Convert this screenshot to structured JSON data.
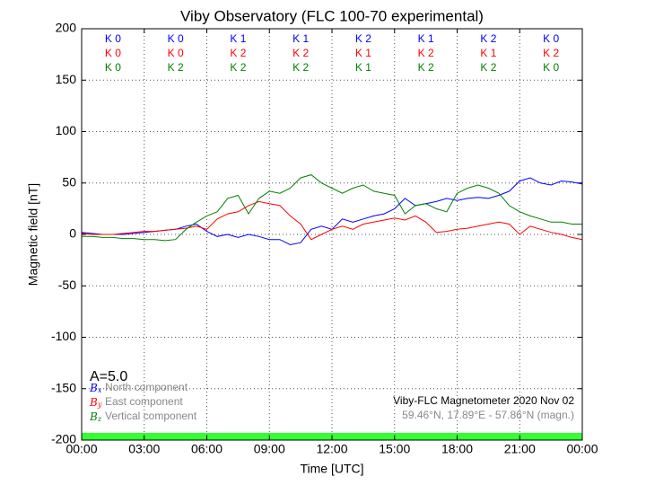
{
  "chart_data": {
    "type": "line",
    "title": "Viby Observatory (FLC 100-70 experimental)",
    "xlabel": "Time [UTC]",
    "ylabel": "Magnetic field [nT]",
    "x": [
      0,
      0.5,
      1,
      1.5,
      2,
      2.5,
      3,
      3.5,
      4,
      4.5,
      5,
      5.5,
      6,
      6.5,
      7,
      7.5,
      8,
      8.5,
      9,
      9.5,
      10,
      10.5,
      11,
      11.5,
      12,
      12.5,
      13,
      13.5,
      14,
      14.5,
      15,
      15.5,
      16,
      16.5,
      17,
      17.5,
      18,
      18.5,
      19,
      19.5,
      20,
      20.5,
      21,
      21.5,
      22,
      22.5,
      23,
      23.5,
      24
    ],
    "xlim": [
      0,
      24
    ],
    "xticks": [
      {
        "value": 0,
        "label": "00:00"
      },
      {
        "value": 3,
        "label": "03:00"
      },
      {
        "value": 6,
        "label": "06:00"
      },
      {
        "value": 9,
        "label": "09:00"
      },
      {
        "value": 12,
        "label": "12:00"
      },
      {
        "value": 15,
        "label": "15:00"
      },
      {
        "value": 18,
        "label": "18:00"
      },
      {
        "value": 21,
        "label": "21:00"
      },
      {
        "value": 24,
        "label": "00:00"
      }
    ],
    "ylim": [
      -200,
      200
    ],
    "yticks": [
      -200,
      -150,
      -100,
      -50,
      0,
      50,
      100,
      150,
      200
    ],
    "grid": true,
    "series": [
      {
        "name": "North component",
        "symbol": "B",
        "subscript": "x",
        "color": "#0000ff",
        "values": [
          2,
          1,
          0,
          0,
          0,
          1,
          2,
          3,
          4,
          5,
          8,
          10,
          3,
          -2,
          0,
          -3,
          0,
          -2,
          -5,
          -5,
          -10,
          -8,
          5,
          8,
          5,
          15,
          12,
          15,
          18,
          20,
          25,
          35,
          28,
          30,
          32,
          35,
          33,
          35,
          36,
          35,
          38,
          42,
          52,
          55,
          50,
          48,
          52,
          51,
          49
        ],
        "k_labels": [
          "K 0",
          "K 0",
          "K 1",
          "K 1",
          "K 2",
          "K 1",
          "K 2",
          "K 0"
        ]
      },
      {
        "name": "East component",
        "symbol": "B",
        "subscript": "y",
        "color": "#ff0000",
        "values": [
          1,
          0,
          0,
          0,
          1,
          2,
          3,
          3,
          4,
          5,
          6,
          8,
          5,
          15,
          20,
          22,
          28,
          32,
          30,
          28,
          18,
          10,
          -5,
          0,
          5,
          8,
          5,
          10,
          12,
          14,
          16,
          14,
          18,
          12,
          2,
          3,
          5,
          6,
          8,
          10,
          12,
          10,
          0,
          8,
          5,
          2,
          0,
          -3,
          -5
        ],
        "k_labels": [
          "K 0",
          "K 0",
          "K 2",
          "K 2",
          "K 1",
          "K 2",
          "K 1",
          "K 2"
        ]
      },
      {
        "name": "Vertical component",
        "symbol": "B",
        "subscript": "z",
        "color": "#008000",
        "values": [
          -2,
          -2,
          -3,
          -3,
          -4,
          -4,
          -5,
          -5,
          -6,
          -5,
          5,
          12,
          18,
          22,
          35,
          38,
          20,
          35,
          42,
          40,
          45,
          55,
          58,
          50,
          45,
          40,
          45,
          48,
          42,
          40,
          38,
          20,
          28,
          30,
          25,
          22,
          40,
          45,
          48,
          45,
          40,
          28,
          22,
          18,
          15,
          12,
          12,
          10,
          10
        ],
        "k_labels": [
          "K 0",
          "K 2",
          "K 2",
          "K 2",
          "K 1",
          "K 2",
          "K 2",
          "K 0"
        ]
      }
    ],
    "annotations": [
      "A=5.0",
      "Viby-FLC Magnetometer 2020 Nov 02",
      "59.46°N, 17.89°E - 57.86°N (magn.)"
    ]
  }
}
